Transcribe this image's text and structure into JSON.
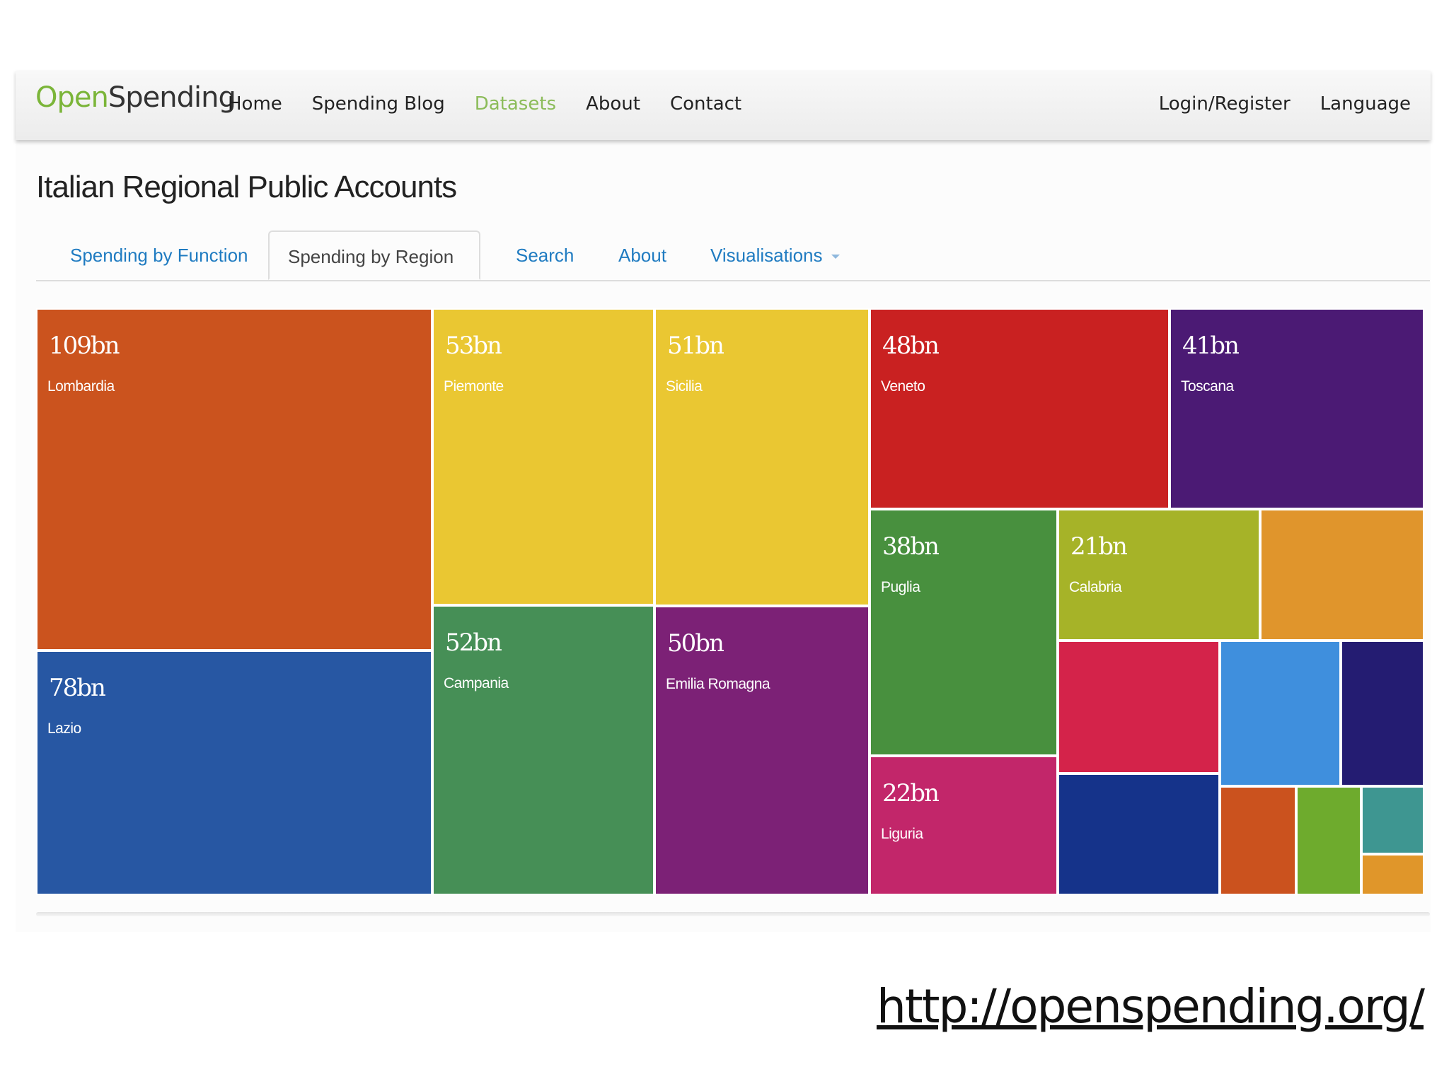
{
  "navbar": {
    "brand_open": "Open",
    "brand_spending": "Spending",
    "links": [
      "Home",
      "Spending Blog",
      "Datasets",
      "About",
      "Contact"
    ],
    "active_link": "Datasets",
    "right_links": [
      "Login/Register",
      "Language"
    ]
  },
  "page": {
    "title": "Italian Regional Public Accounts"
  },
  "tabs": {
    "items": [
      "Spending by Function",
      "Spending by Region",
      "Search",
      "About",
      "Visualisations"
    ],
    "selected": "Spending by Region"
  },
  "treemap": {
    "regions": [
      {
        "amount": "109bn",
        "name": "Lombardia",
        "color": "#cb531e"
      },
      {
        "amount": "78bn",
        "name": "Lazio",
        "color": "#2757a3"
      },
      {
        "amount": "53bn",
        "name": "Piemonte",
        "color": "#eac732"
      },
      {
        "amount": "52bn",
        "name": "Campania",
        "color": "#468f56"
      },
      {
        "amount": "51bn",
        "name": "Sicilia",
        "color": "#eac732"
      },
      {
        "amount": "50bn",
        "name": "Emilia Romagna",
        "color": "#7c2176"
      },
      {
        "amount": "48bn",
        "name": "Veneto",
        "color": "#c92121"
      },
      {
        "amount": "41bn",
        "name": "Toscana",
        "color": "#4b1a74"
      },
      {
        "amount": "38bn",
        "name": "Puglia",
        "color": "#48903e"
      },
      {
        "amount": "22bn",
        "name": "Liguria",
        "color": "#c2266a"
      },
      {
        "amount": "21bn",
        "name": "Calabria",
        "color": "#a6b328"
      },
      {
        "amount": "",
        "name": "",
        "color": "#e0952c"
      },
      {
        "amount": "",
        "name": "",
        "color": "#d4234a"
      },
      {
        "amount": "",
        "name": "",
        "color": "#3f8fdd"
      },
      {
        "amount": "",
        "name": "",
        "color": "#241c72"
      },
      {
        "amount": "",
        "name": "",
        "color": "#15338a"
      },
      {
        "amount": "",
        "name": "",
        "color": "#cb521e"
      },
      {
        "amount": "",
        "name": "",
        "color": "#6eab2d"
      },
      {
        "amount": "",
        "name": "",
        "color": "#3e9691"
      },
      {
        "amount": "",
        "name": "",
        "color": "#e0962a"
      }
    ]
  },
  "footer": {
    "url": "http://openspending.org/"
  }
}
